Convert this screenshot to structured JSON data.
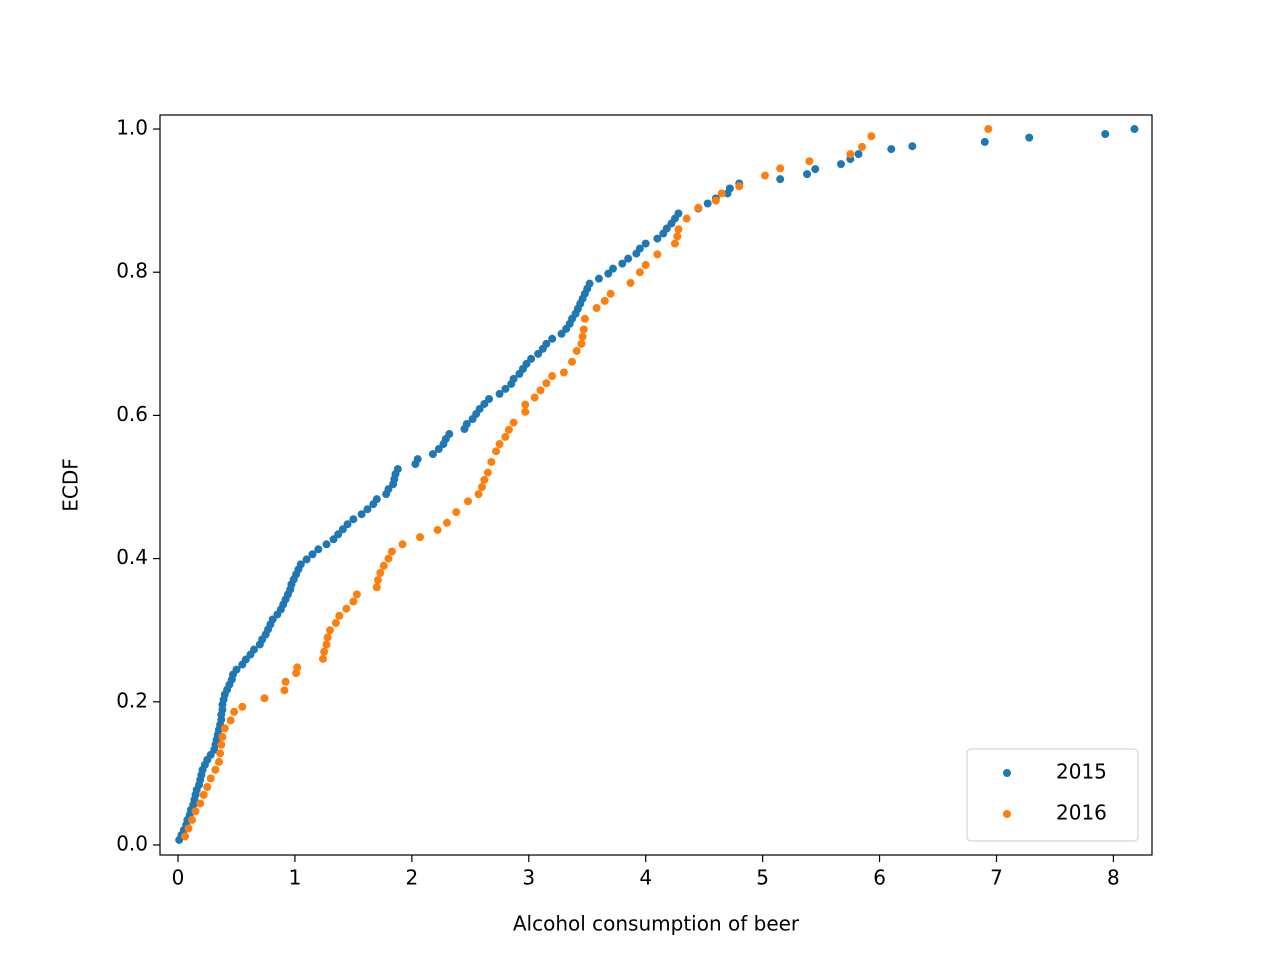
{
  "chart_data": {
    "type": "scatter",
    "xlabel": "Alcohol consumption of beer",
    "ylabel": "ECDF",
    "xlim": [
      -0.154,
      8.33
    ],
    "ylim": [
      -0.014,
      1.0196
    ],
    "xticks": [
      0,
      1,
      2,
      3,
      4,
      5,
      6,
      7,
      8
    ],
    "yticks": [
      {
        "value": 0,
        "label": "0.0"
      },
      {
        "value": 0.2,
        "label": "0.2"
      },
      {
        "value": 0.4,
        "label": "0.4"
      },
      {
        "value": 0.6,
        "label": "0.6"
      },
      {
        "value": 0.8,
        "label": "0.8"
      },
      {
        "value": 1,
        "label": "1.0"
      }
    ],
    "legend": "lower right",
    "series": [
      {
        "name": "2015",
        "color": "#1f77b4",
        "x": [
          0.01,
          0.03,
          0.05,
          0.07,
          0.08,
          0.1,
          0.11,
          0.13,
          0.14,
          0.15,
          0.16,
          0.18,
          0.19,
          0.2,
          0.21,
          0.23,
          0.25,
          0.28,
          0.31,
          0.32,
          0.33,
          0.34,
          0.35,
          0.36,
          0.37,
          0.37,
          0.38,
          0.38,
          0.39,
          0.4,
          0.42,
          0.44,
          0.46,
          0.47,
          0.5,
          0.55,
          0.58,
          0.62,
          0.65,
          0.7,
          0.72,
          0.75,
          0.77,
          0.79,
          0.81,
          0.85,
          0.88,
          0.9,
          0.92,
          0.94,
          0.96,
          0.97,
          0.99,
          1.01,
          1.03,
          1.05,
          1.1,
          1.15,
          1.2,
          1.27,
          1.33,
          1.37,
          1.41,
          1.45,
          1.5,
          1.57,
          1.62,
          1.67,
          1.7,
          1.78,
          1.8,
          1.84,
          1.85,
          1.86,
          1.88,
          2.03,
          2.05,
          2.18,
          2.23,
          2.27,
          2.29,
          2.32,
          2.45,
          2.47,
          2.52,
          2.55,
          2.58,
          2.62,
          2.66,
          2.75,
          2.8,
          2.85,
          2.87,
          2.92,
          2.95,
          2.98,
          3.02,
          3.08,
          3.12,
          3.15,
          3.2,
          3.28,
          3.32,
          3.35,
          3.37,
          3.4,
          3.42,
          3.44,
          3.46,
          3.48,
          3.5,
          3.52,
          3.6,
          3.68,
          3.72,
          3.8,
          3.85,
          3.92,
          3.95,
          4.0,
          4.1,
          4.15,
          4.18,
          4.22,
          4.25,
          4.28,
          4.45,
          4.53,
          4.6,
          4.7,
          4.72,
          4.8,
          5.15,
          5.38,
          5.45,
          5.67,
          5.75,
          5.82,
          6.1,
          6.28,
          6.9,
          7.28,
          7.93,
          8.18
        ],
        "values": [
          0.007,
          0.014,
          0.021,
          0.028,
          0.035,
          0.042,
          0.049,
          0.056,
          0.063,
          0.07,
          0.077,
          0.084,
          0.091,
          0.098,
          0.105,
          0.112,
          0.119,
          0.126,
          0.133,
          0.14,
          0.147,
          0.154,
          0.161,
          0.168,
          0.175,
          0.182,
          0.189,
          0.196,
          0.203,
          0.21,
          0.217,
          0.224,
          0.231,
          0.238,
          0.245,
          0.252,
          0.259,
          0.266,
          0.273,
          0.28,
          0.287,
          0.294,
          0.301,
          0.308,
          0.315,
          0.322,
          0.329,
          0.336,
          0.343,
          0.35,
          0.357,
          0.364,
          0.371,
          0.378,
          0.385,
          0.392,
          0.399,
          0.406,
          0.413,
          0.42,
          0.427,
          0.434,
          0.441,
          0.448,
          0.455,
          0.462,
          0.469,
          0.476,
          0.483,
          0.49,
          0.497,
          0.504,
          0.511,
          0.518,
          0.525,
          0.532,
          0.539,
          0.546,
          0.553,
          0.56,
          0.567,
          0.574,
          0.581,
          0.588,
          0.595,
          0.602,
          0.609,
          0.616,
          0.623,
          0.63,
          0.637,
          0.644,
          0.651,
          0.658,
          0.665,
          0.672,
          0.679,
          0.686,
          0.693,
          0.7,
          0.707,
          0.714,
          0.721,
          0.728,
          0.735,
          0.742,
          0.749,
          0.756,
          0.763,
          0.77,
          0.777,
          0.784,
          0.791,
          0.798,
          0.805,
          0.812,
          0.819,
          0.826,
          0.833,
          0.84,
          0.847,
          0.854,
          0.861,
          0.868,
          0.875,
          0.882,
          0.889,
          0.896,
          0.903,
          0.91,
          0.917,
          0.924,
          0.93,
          0.937,
          0.944,
          0.951,
          0.958,
          0.965,
          0.972,
          0.976,
          0.982,
          0.988,
          0.993,
          1.0
        ]
      },
      {
        "name": "2016",
        "color": "#ff7f0e",
        "x": [
          0.06,
          0.09,
          0.12,
          0.15,
          0.19,
          0.22,
          0.25,
          0.28,
          0.32,
          0.35,
          0.36,
          0.37,
          0.38,
          0.4,
          0.45,
          0.48,
          0.55,
          0.74,
          0.91,
          0.92,
          1.01,
          1.02,
          1.24,
          1.25,
          1.27,
          1.28,
          1.3,
          1.35,
          1.38,
          1.44,
          1.5,
          1.53,
          1.7,
          1.71,
          1.73,
          1.76,
          1.8,
          1.83,
          1.92,
          2.07,
          2.22,
          2.3,
          2.38,
          2.48,
          2.57,
          2.6,
          2.62,
          2.65,
          2.68,
          2.72,
          2.75,
          2.8,
          2.83,
          2.87,
          2.97,
          2.97,
          3.05,
          3.1,
          3.15,
          3.2,
          3.3,
          3.37,
          3.41,
          3.45,
          3.46,
          3.47,
          3.48,
          3.58,
          3.65,
          3.7,
          3.87,
          3.95,
          4.0,
          4.1,
          4.25,
          4.27,
          4.28,
          4.35,
          4.45,
          4.6,
          4.65,
          4.8,
          5.02,
          5.15,
          5.4,
          5.75,
          5.85,
          5.93,
          6.93
        ],
        "values": [
          0.012,
          0.023,
          0.035,
          0.047,
          0.058,
          0.07,
          0.081,
          0.093,
          0.105,
          0.116,
          0.128,
          0.14,
          0.151,
          0.163,
          0.174,
          0.186,
          0.193,
          0.205,
          0.216,
          0.228,
          0.24,
          0.248,
          0.26,
          0.27,
          0.28,
          0.29,
          0.3,
          0.31,
          0.32,
          0.33,
          0.34,
          0.35,
          0.36,
          0.37,
          0.38,
          0.39,
          0.4,
          0.41,
          0.42,
          0.43,
          0.44,
          0.45,
          0.465,
          0.48,
          0.49,
          0.5,
          0.51,
          0.52,
          0.535,
          0.55,
          0.56,
          0.57,
          0.58,
          0.59,
          0.605,
          0.615,
          0.625,
          0.635,
          0.645,
          0.655,
          0.66,
          0.675,
          0.69,
          0.7,
          0.71,
          0.72,
          0.735,
          0.75,
          0.76,
          0.77,
          0.785,
          0.8,
          0.81,
          0.825,
          0.84,
          0.85,
          0.86,
          0.875,
          0.89,
          0.9,
          0.91,
          0.92,
          0.935,
          0.945,
          0.955,
          0.965,
          0.975,
          0.99,
          1.0
        ]
      }
    ]
  }
}
